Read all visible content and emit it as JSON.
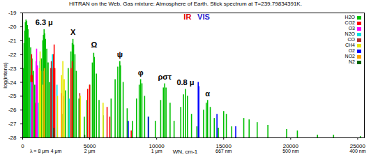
{
  "chart_data": {
    "type": "stick",
    "title": "HITRAN on the Web. Gas mixture: Atmosphere of Earth. Stick spectrum at T=239.79834391K.",
    "xlabel": "WN, cm-1",
    "ylabel": "log(intens)",
    "xlim": [
      0,
      25500
    ],
    "xticks": [
      0,
      5000,
      10000,
      15000,
      20000,
      25000
    ],
    "ylim": [
      -28,
      -19
    ],
    "yticks": [
      -19,
      -20,
      -21,
      -22,
      -23,
      -24,
      -25,
      -26,
      -27,
      -28
    ],
    "legend": "top-right",
    "series": [
      {
        "name": "H2O",
        "color": "#00c000",
        "x": [
          50,
          100,
          150,
          200,
          250,
          300,
          350,
          400,
          500,
          600,
          700,
          800,
          900,
          1000,
          1100,
          1300,
          1400,
          1500,
          1550,
          1600,
          1650,
          1700,
          1800,
          1900,
          2000,
          2100,
          3000,
          3200,
          3400,
          3600,
          3700,
          3750,
          3800,
          3900,
          4000,
          4200,
          4600,
          4800,
          5000,
          5200,
          5300,
          5350,
          5500,
          5700,
          6000,
          6600,
          6900,
          7100,
          7250,
          7300,
          7500,
          7800,
          8200,
          8500,
          8700,
          8800,
          8900,
          9100,
          9400,
          9900,
          10300,
          10500,
          10600,
          10700,
          11000,
          11300,
          11800,
          12000,
          12150,
          12300,
          12600,
          13000,
          13500,
          13700,
          13800,
          14000,
          14300,
          14600,
          15000,
          15200,
          15600,
          16500,
          16900,
          17500,
          18300,
          19700,
          20500,
          22000,
          23200,
          25200
        ],
        "values": [
          -23.0,
          -21.2,
          -20.3,
          -19.7,
          -19.5,
          -19.6,
          -19.9,
          -20.2,
          -20.8,
          -21.5,
          -22.3,
          -23.2,
          -24.2,
          -25.1,
          -26.2,
          -24.0,
          -22.3,
          -21.0,
          -20.6,
          -20.2,
          -20.5,
          -20.9,
          -21.6,
          -22.6,
          -24.0,
          -25.8,
          -26.3,
          -24.6,
          -23.0,
          -21.8,
          -21.2,
          -20.9,
          -21.3,
          -22.0,
          -23.2,
          -25.2,
          -26.5,
          -25.3,
          -24.2,
          -22.6,
          -21.9,
          -22.2,
          -23.4,
          -25.3,
          -26.4,
          -25.2,
          -23.8,
          -22.9,
          -22.5,
          -22.8,
          -24.0,
          -25.9,
          -26.8,
          -25.2,
          -24.2,
          -23.8,
          -24.1,
          -25.0,
          -26.5,
          -26.8,
          -25.3,
          -24.4,
          -24.1,
          -24.4,
          -25.5,
          -26.8,
          -25.8,
          -24.9,
          -24.5,
          -25.0,
          -26.3,
          -27.2,
          -26.0,
          -25.5,
          -25.3,
          -25.8,
          -26.6,
          -27.3,
          -26.1,
          -26.3,
          -27.2,
          -26.6,
          -26.7,
          -26.9,
          -27.1,
          -27.4,
          -27.5,
          -27.8,
          -27.8,
          -27.9
        ]
      },
      {
        "name": "CO2",
        "color": "#ff0000",
        "x": [
          620,
          667,
          720,
          960,
          1060,
          2280,
          2350,
          2400,
          3600,
          3700,
          4850,
          5000,
          6300,
          6500,
          8100
        ],
        "values": [
          -23.5,
          -22.0,
          -23.5,
          -25.5,
          -25.5,
          -22.0,
          -21.3,
          -23.0,
          -23.0,
          -22.5,
          -24.5,
          -24.2,
          -25.8,
          -26.5,
          -27.5
        ]
      },
      {
        "name": "O3",
        "color": "#ff00ff",
        "x": [
          700,
          1000,
          1040,
          1100,
          2110,
          3040
        ],
        "values": [
          -24.0,
          -22.5,
          -21.6,
          -22.8,
          -24.5,
          -25.0
        ]
      },
      {
        "name": "N2O",
        "color": "#00e0e0",
        "x": [
          590,
          1170,
          1285,
          2220,
          2560,
          3480
        ],
        "values": [
          -24.0,
          -25.5,
          -22.5,
          -22.0,
          -24.2,
          -25.2
        ]
      },
      {
        "name": "CO",
        "color": "#b03030",
        "x": [
          2100,
          2140,
          2180,
          4260
        ],
        "values": [
          -23.0,
          -22.5,
          -23.0,
          -24.8
        ]
      },
      {
        "name": "CH4",
        "color": "#e8e800",
        "x": [
          1250,
          1300,
          1350,
          1500,
          2600,
          2900,
          3000,
          3100,
          4300,
          6000
        ],
        "values": [
          -23.0,
          -21.8,
          -23.2,
          -24.2,
          -25.0,
          -23.5,
          -22.5,
          -23.8,
          -25.0,
          -25.5
        ]
      },
      {
        "name": "O2",
        "color": "#0000ff",
        "x": [
          7880,
          9370,
          13100,
          13150,
          14500,
          15900
        ],
        "values": [
          -26.8,
          -26.5,
          -24.0,
          -24.3,
          -26.3,
          -27.2
        ]
      },
      {
        "name": "NO2",
        "color": "#ffa500",
        "x": [
          1600,
          1620,
          2900
        ],
        "values": [
          -23.2,
          -23.0,
          -24.8
        ]
      },
      {
        "name": "N2",
        "color": "#006400",
        "x": [
          2330,
          4630
        ],
        "values": [
          -27.3,
          -27.8
        ]
      }
    ],
    "annotations": [
      {
        "text": "6.3 μ",
        "x": 1600,
        "y": -19.9,
        "color": "#000000"
      },
      {
        "text": "X",
        "x": 3750,
        "y": -20.6,
        "color": "#000000"
      },
      {
        "text": "Ω",
        "x": 5330,
        "y": -21.5,
        "color": "#000000"
      },
      {
        "text": "ψ",
        "x": 7250,
        "y": -22.2,
        "color": "#000000"
      },
      {
        "text": "φ",
        "x": 8800,
        "y": -23.5,
        "color": "#000000"
      },
      {
        "text": "ρστ",
        "x": 10600,
        "y": -23.8,
        "color": "#000000"
      },
      {
        "text": "0.8 μ",
        "x": 12150,
        "y": -24.2,
        "color": "#000000"
      },
      {
        "text": "α",
        "x": 13800,
        "y": -25.0,
        "color": "#000000"
      },
      {
        "text": "IR",
        "x": 12300,
        "y": -19.5,
        "color": "#e00000"
      },
      {
        "text": "VIS",
        "x": 13500,
        "y": -19.5,
        "color": "#2020d0"
      }
    ],
    "wavelength_labels": [
      {
        "x": 1250,
        "label": "λ = 8 μm"
      },
      {
        "x": 2500,
        "label": "4 μm"
      },
      {
        "x": 5000,
        "label": "2 μm"
      },
      {
        "x": 10000,
        "label": "1 μm"
      },
      {
        "x": 15000,
        "label": "667 nm"
      },
      {
        "x": 20000,
        "label": "500 nm"
      },
      {
        "x": 25000,
        "label": "400 nm"
      }
    ]
  }
}
